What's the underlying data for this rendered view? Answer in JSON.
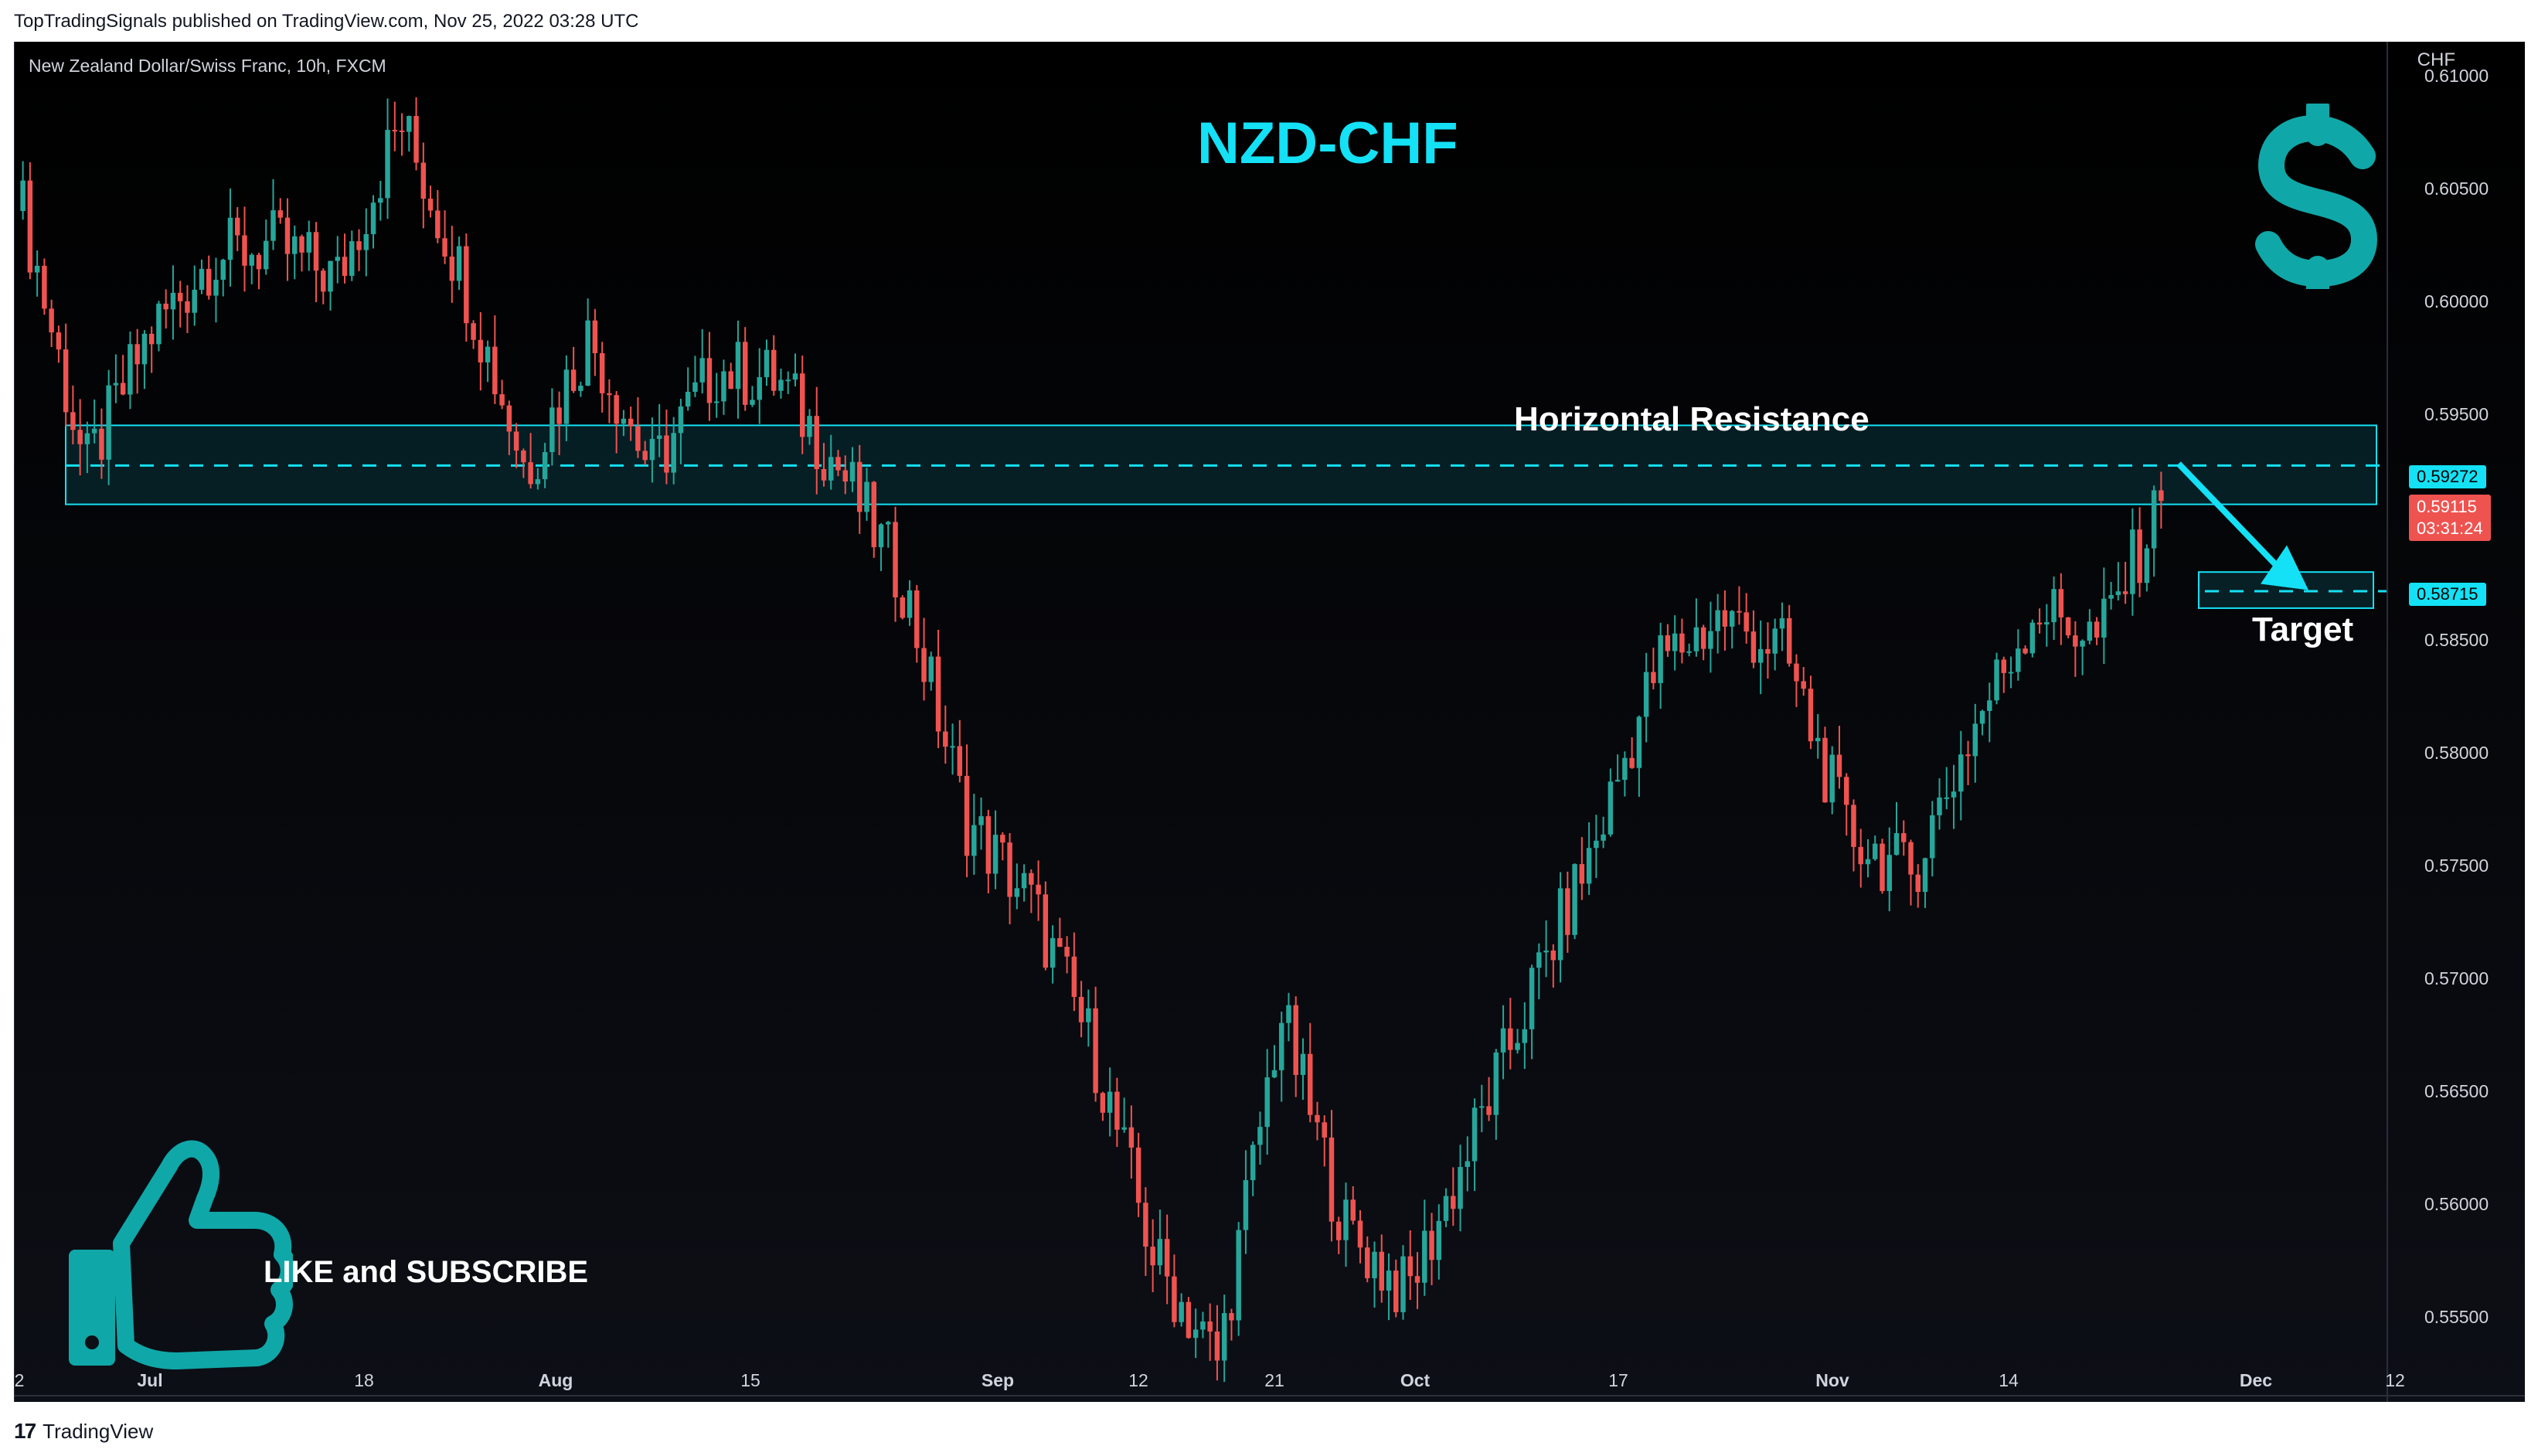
{
  "header": {
    "published": "TopTradingSignals published on TradingView.com, Nov 25, 2022 03:28 UTC"
  },
  "symbol": {
    "description": "New Zealand Dollar/Swiss Franc, 10h, FXCM",
    "currency": "CHF"
  },
  "overlay": {
    "title": "NZD-CHF",
    "resistance_label": "Horizontal Resistance",
    "target_label": "Target",
    "cta": "LIKE and SUBSCRIBE",
    "dollar_icon": "dollar-sign-icon",
    "thumb_icon": "thumbs-up-icon"
  },
  "footer": {
    "brand": "TradingView",
    "logo_mark": "17"
  },
  "colors": {
    "up": "#26a69a",
    "down": "#ef5350",
    "accent": "#14e1f5",
    "background": "#000000"
  },
  "tags": {
    "resistance": "0.59272",
    "current": "0.59115",
    "countdown": "03:31:24",
    "target": "0.58715"
  },
  "chart_data": {
    "type": "candlestick",
    "title": "NZD-CHF",
    "ylim": [
      0.5515,
      0.6115
    ],
    "y_ticks": [
      0.61,
      0.605,
      0.6,
      0.595,
      0.585,
      0.58,
      0.575,
      0.57,
      0.565,
      0.56,
      0.555
    ],
    "y_tick_labels": [
      "0.61000",
      "0.60500",
      "0.60000",
      "0.59500",
      "0.58500",
      "0.58000",
      "0.57500",
      "0.57000",
      "0.56500",
      "0.56000",
      "0.55500"
    ],
    "x_ticks": [
      "2",
      "Jul",
      "18",
      "Aug",
      "15",
      "Sep",
      "12",
      "21",
      "Oct",
      "17",
      "Nov",
      "14",
      "Dec",
      "12"
    ],
    "resistance_zone": [
      0.591,
      0.5945
    ],
    "resistance_level": 0.59272,
    "target_level": 0.58715,
    "target_zone": [
      0.5864,
      0.588
    ],
    "current_price": 0.59115,
    "close_path": [
      {
        "date": "Jun 27",
        "close": 0.604
      },
      {
        "date": "Jul 1",
        "close": 0.5925
      },
      {
        "date": "Jul 7",
        "close": 0.5985
      },
      {
        "date": "Jul 18",
        "close": 0.602
      },
      {
        "date": "Aug 1",
        "close": 0.6025
      },
      {
        "date": "Aug 8",
        "close": 0.601
      },
      {
        "date": "Aug 12",
        "close": 0.608
      },
      {
        "date": "Aug 16",
        "close": 0.601
      },
      {
        "date": "Aug 22",
        "close": 0.5925
      },
      {
        "date": "Aug 26",
        "close": 0.5985
      },
      {
        "date": "Aug 30",
        "close": 0.5925
      },
      {
        "date": "Sep 2",
        "close": 0.597
      },
      {
        "date": "Sep 6",
        "close": 0.5965
      },
      {
        "date": "Sep 9",
        "close": 0.5925
      },
      {
        "date": "Sep 12",
        "close": 0.5875
      },
      {
        "date": "Sep 14",
        "close": 0.577
      },
      {
        "date": "Sep 19",
        "close": 0.5735
      },
      {
        "date": "Sep 22",
        "close": 0.567
      },
      {
        "date": "Sep 26",
        "close": 0.5575
      },
      {
        "date": "Sep 30",
        "close": 0.553
      },
      {
        "date": "Oct 3",
        "close": 0.5685
      },
      {
        "date": "Oct 7",
        "close": 0.559
      },
      {
        "date": "Oct 12",
        "close": 0.556
      },
      {
        "date": "Oct 18",
        "close": 0.5625
      },
      {
        "date": "Oct 24",
        "close": 0.5695
      },
      {
        "date": "Oct 28",
        "close": 0.576
      },
      {
        "date": "Nov 1",
        "close": 0.584
      },
      {
        "date": "Nov 4",
        "close": 0.586
      },
      {
        "date": "Nov 9",
        "close": 0.5845
      },
      {
        "date": "Nov 11",
        "close": 0.5765
      },
      {
        "date": "Nov 15",
        "close": 0.5745
      },
      {
        "date": "Nov 17",
        "close": 0.581
      },
      {
        "date": "Nov 21",
        "close": 0.5865
      },
      {
        "date": "Nov 23",
        "close": 0.585
      },
      {
        "date": "Nov 25",
        "close": 0.5911
      }
    ]
  }
}
